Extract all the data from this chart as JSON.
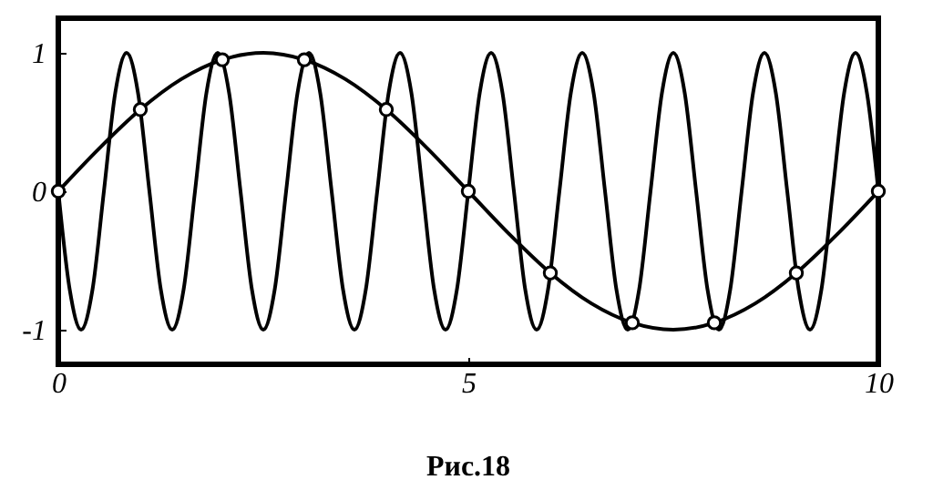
{
  "chart_data": {
    "type": "line",
    "annotations": [
      "Рис.18"
    ],
    "xlim": [
      0,
      10
    ],
    "xticks": [
      0,
      5,
      10
    ],
    "ylim": [
      -1.25,
      1.25
    ],
    "yticks": [
      -1,
      0,
      1
    ],
    "grid": false,
    "line_style": "solid",
    "series": [
      {
        "color": "#000000",
        "x": [
          0,
          0.139,
          0.278,
          0.417,
          0.556,
          0.694,
          0.833,
          0.972,
          1.111,
          1.25,
          1.389,
          1.528,
          1.667,
          1.806,
          1.944,
          2.083,
          2.222,
          2.361,
          2.5,
          2.639,
          2.778,
          2.917,
          3.056,
          3.194,
          3.333,
          3.472,
          3.611,
          3.75,
          3.889,
          4.028,
          4.167,
          4.306,
          4.444,
          4.583,
          4.722,
          4.861,
          5,
          5.139,
          5.278,
          5.417,
          5.556,
          5.694,
          5.833,
          5.972,
          6.111,
          6.25,
          6.389,
          6.528,
          6.667,
          6.806,
          6.944,
          7.083,
          7.222,
          7.361,
          7.5,
          7.639,
          7.778,
          7.917,
          8.056,
          8.194,
          8.333,
          8.472,
          8.611,
          8.75,
          8.889,
          9.028,
          9.167,
          9.306,
          9.444,
          9.583,
          9.722,
          9.861,
          10
        ],
        "values": [
          0,
          -0.71,
          -1,
          -0.71,
          0,
          0.71,
          1,
          0.71,
          0,
          -0.71,
          -1,
          -0.71,
          0,
          0.71,
          1,
          0.71,
          0,
          -0.71,
          -1,
          -0.71,
          0,
          0.71,
          1,
          0.71,
          0,
          -0.71,
          -1,
          -0.71,
          0,
          0.71,
          1,
          0.71,
          0,
          -0.71,
          -1,
          -0.71,
          0,
          0.71,
          1,
          0.71,
          0,
          -0.71,
          -1,
          -0.71,
          0,
          0.71,
          1,
          0.71,
          0,
          -0.71,
          -1,
          -0.71,
          0,
          0.71,
          1,
          0.71,
          0,
          -0.71,
          -1,
          -0.71,
          0,
          0.71,
          1,
          0.71,
          0,
          -0.71,
          -1,
          -0.71,
          0,
          0.71,
          1,
          0.71,
          0
        ]
      },
      {
        "color": "#000000",
        "x": [
          0,
          0.5,
          1,
          1.5,
          2,
          2.5,
          3,
          3.5,
          4,
          4.5,
          5,
          5.5,
          6,
          6.5,
          7,
          7.5,
          8,
          8.5,
          9,
          9.5,
          10
        ],
        "values": [
          0,
          0.31,
          0.59,
          0.81,
          0.95,
          1,
          0.95,
          0.81,
          0.59,
          0.31,
          0,
          -0.31,
          -0.59,
          -0.81,
          -0.95,
          -1,
          -0.95,
          -0.81,
          -0.59,
          -0.31,
          0
        ]
      },
      {
        "type": "scatter",
        "marker": "circle",
        "color": "#000000",
        "x": [
          0,
          1,
          2,
          3,
          4,
          5,
          6,
          7,
          8,
          9,
          10
        ],
        "values": [
          0,
          0.59,
          0.95,
          0.95,
          0.59,
          0,
          -0.59,
          -0.95,
          -0.95,
          -0.59,
          0
        ]
      }
    ]
  }
}
